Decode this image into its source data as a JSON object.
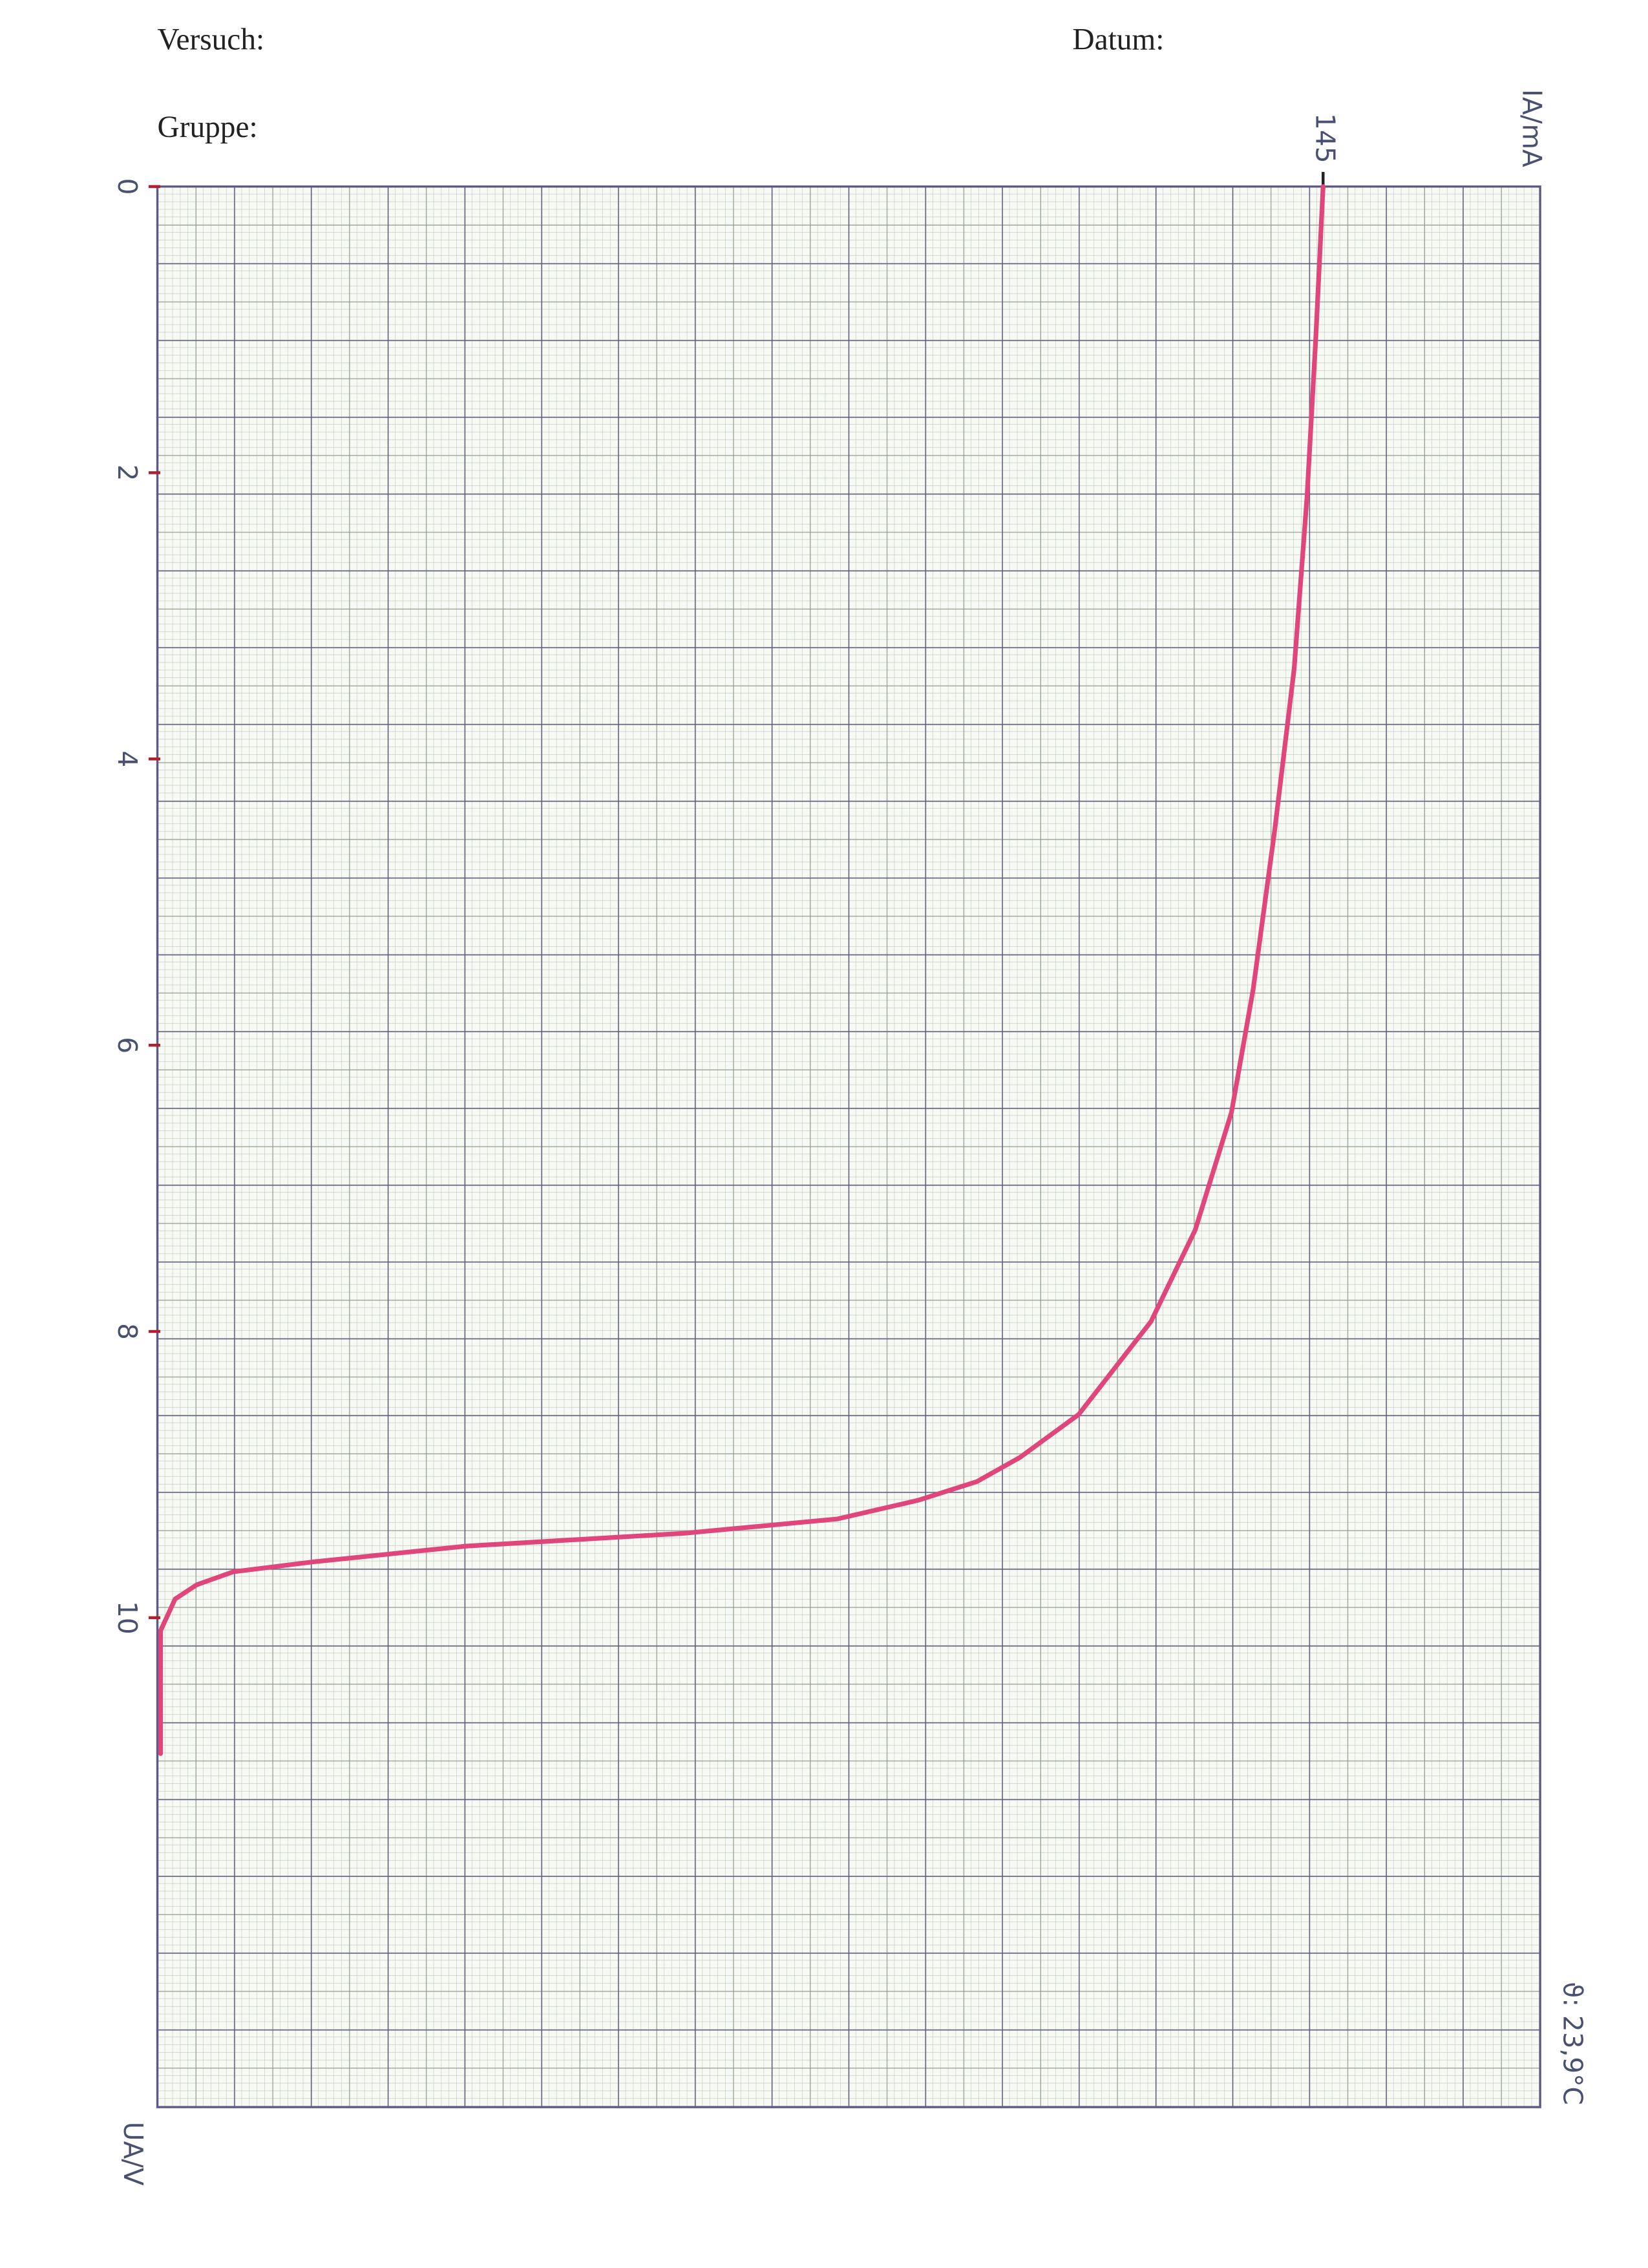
{
  "header": {
    "versuch": "Versuch:",
    "datum": "Datum:",
    "gruppe": "Gruppe:"
  },
  "chart_data": {
    "type": "line",
    "xlabel": "UA/V",
    "ylabel": "IA/mA",
    "annotation": "ϑ: 23,9°C",
    "x": [
      0,
      1.05,
      2.17,
      3.37,
      4.49,
      5.61,
      6.47,
      7.29,
      7.93,
      8.58,
      8.88,
      9.05,
      9.18,
      9.31,
      9.41,
      9.5,
      9.61,
      9.68,
      9.77,
      9.87,
      10.09,
      10.95
    ],
    "series": [
      {
        "name": "IA",
        "color": "#e0457b",
        "values": [
          145,
          144.1,
          143.0,
          141.4,
          139.0,
          136.3,
          133.6,
          129.1,
          123.6,
          114.6,
          107.3,
          101.9,
          94.6,
          84.6,
          65.6,
          38.4,
          19.4,
          9.4,
          4.9,
          2.2,
          0.4,
          0.4
        ]
      }
    ],
    "xlim": [
      0,
      13.42
    ],
    "xticks": [
      0,
      2,
      4,
      6,
      8,
      10
    ],
    "ylim": [
      0,
      172
    ],
    "yticks": [
      145
    ]
  }
}
